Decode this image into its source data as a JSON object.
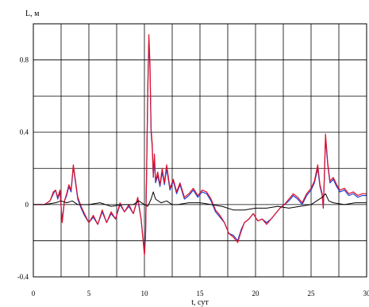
{
  "chart_data": {
    "type": "line",
    "ylabel": "L, м",
    "xlabel": "t, сут",
    "xlim": [
      0,
      30
    ],
    "ylim": [
      -0.4,
      1.0
    ],
    "x_ticks": [
      0,
      5,
      10,
      15,
      20,
      25,
      30
    ],
    "x_tick_labels": [
      "0",
      "5",
      "10",
      "15",
      "20",
      "25",
      "30"
    ],
    "y_ticks": [
      -0.4,
      0,
      0.4,
      0.8
    ],
    "y_tick_labels": [
      "-0.4",
      "0",
      "0.4",
      "0.8"
    ],
    "x_grid": [
      0,
      2.5,
      5,
      7.5,
      10,
      12.5,
      15,
      17.5,
      20,
      22.5,
      25,
      27.5,
      30
    ],
    "y_grid": [
      -0.4,
      -0.2,
      0,
      0.2,
      0.4,
      0.6,
      0.8,
      1.0
    ],
    "grid": true,
    "series": [
      {
        "color": "#1f3fd0",
        "x": [
          0,
          0.5,
          1.0,
          1.5,
          1.8,
          2.0,
          2.2,
          2.4,
          2.6,
          2.8,
          3.0,
          3.2,
          3.4,
          3.6,
          3.8,
          4.0,
          4.3,
          4.6,
          5.0,
          5.4,
          5.8,
          6.2,
          6.6,
          7.0,
          7.4,
          7.8,
          8.2,
          8.6,
          9.0,
          9.4,
          9.7,
          10.0,
          10.1,
          10.2,
          10.3,
          10.4,
          10.5,
          10.6,
          10.7,
          10.8,
          10.9,
          11.0,
          11.2,
          11.4,
          11.6,
          11.8,
          12.0,
          12.3,
          12.6,
          12.9,
          13.2,
          13.6,
          14.0,
          14.4,
          14.8,
          15.2,
          15.6,
          16.0,
          16.4,
          16.8,
          17.2,
          17.6,
          18.0,
          18.4,
          18.7,
          19.0,
          19.4,
          19.8,
          20.2,
          20.6,
          21.0,
          21.4,
          21.8,
          22.2,
          22.6,
          23.0,
          23.4,
          23.8,
          24.2,
          24.6,
          25.0,
          25.3,
          25.6,
          25.8,
          26.0,
          26.1,
          26.2,
          26.3,
          26.5,
          26.7,
          27.0,
          27.3,
          27.6,
          28.0,
          28.4,
          28.8,
          29.2,
          29.6,
          30.0
        ],
        "y": [
          0.0,
          0.0,
          0.0,
          0.02,
          0.06,
          0.08,
          0.03,
          0.07,
          -0.09,
          0.02,
          0.05,
          0.1,
          0.07,
          0.21,
          0.12,
          0.03,
          -0.02,
          -0.06,
          -0.1,
          -0.07,
          -0.11,
          -0.04,
          -0.1,
          -0.05,
          -0.08,
          0.0,
          -0.04,
          -0.01,
          -0.05,
          0.03,
          -0.08,
          -0.27,
          -0.17,
          0.18,
          0.62,
          0.91,
          0.75,
          0.4,
          0.32,
          0.15,
          0.26,
          0.12,
          0.16,
          0.1,
          0.18,
          0.11,
          0.2,
          0.08,
          0.13,
          0.06,
          0.11,
          0.03,
          0.05,
          0.08,
          0.04,
          0.07,
          0.06,
          0.02,
          -0.04,
          -0.07,
          -0.1,
          -0.16,
          -0.17,
          -0.2,
          -0.14,
          -0.1,
          -0.08,
          -0.05,
          -0.09,
          -0.08,
          -0.1,
          -0.08,
          -0.05,
          -0.02,
          0.0,
          0.02,
          0.05,
          0.03,
          0.0,
          0.05,
          0.08,
          0.12,
          0.2,
          0.1,
          0.05,
          -0.02,
          0.15,
          0.37,
          0.22,
          0.12,
          0.14,
          0.1,
          0.07,
          0.08,
          0.05,
          0.06,
          0.04,
          0.05,
          0.05
        ]
      },
      {
        "color": "#e0102a",
        "x": [
          0,
          0.5,
          1.0,
          1.5,
          1.8,
          2.0,
          2.2,
          2.4,
          2.6,
          2.8,
          3.0,
          3.2,
          3.4,
          3.6,
          3.8,
          4.0,
          4.3,
          4.6,
          5.0,
          5.4,
          5.8,
          6.2,
          6.6,
          7.0,
          7.4,
          7.8,
          8.2,
          8.6,
          9.0,
          9.4,
          9.7,
          10.0,
          10.1,
          10.2,
          10.3,
          10.4,
          10.5,
          10.6,
          10.7,
          10.8,
          10.9,
          11.0,
          11.2,
          11.4,
          11.6,
          11.8,
          12.0,
          12.3,
          12.6,
          12.9,
          13.2,
          13.6,
          14.0,
          14.4,
          14.8,
          15.2,
          15.6,
          16.0,
          16.4,
          16.8,
          17.2,
          17.6,
          18.0,
          18.4,
          18.7,
          19.0,
          19.4,
          19.8,
          20.2,
          20.6,
          21.0,
          21.4,
          21.8,
          22.2,
          22.6,
          23.0,
          23.4,
          23.8,
          24.2,
          24.6,
          25.0,
          25.3,
          25.6,
          25.8,
          26.0,
          26.1,
          26.2,
          26.3,
          26.5,
          26.7,
          27.0,
          27.3,
          27.6,
          28.0,
          28.4,
          28.8,
          29.2,
          29.6,
          30.0
        ],
        "y": [
          0.0,
          0.0,
          0.0,
          0.02,
          0.07,
          0.08,
          0.04,
          0.08,
          -0.1,
          0.02,
          0.06,
          0.11,
          0.08,
          0.22,
          0.13,
          0.04,
          -0.01,
          -0.05,
          -0.1,
          -0.06,
          -0.11,
          -0.03,
          -0.1,
          -0.04,
          -0.08,
          0.01,
          -0.04,
          0.0,
          -0.05,
          0.04,
          -0.08,
          -0.28,
          -0.18,
          0.2,
          0.65,
          0.94,
          0.78,
          0.42,
          0.34,
          0.16,
          0.28,
          0.13,
          0.18,
          0.11,
          0.2,
          0.12,
          0.22,
          0.09,
          0.14,
          0.07,
          0.12,
          0.04,
          0.06,
          0.09,
          0.05,
          0.08,
          0.07,
          0.03,
          -0.03,
          -0.06,
          -0.1,
          -0.16,
          -0.18,
          -0.21,
          -0.15,
          -0.1,
          -0.08,
          -0.05,
          -0.09,
          -0.08,
          -0.11,
          -0.08,
          -0.05,
          -0.02,
          0.0,
          0.03,
          0.06,
          0.04,
          0.01,
          0.06,
          0.09,
          0.13,
          0.22,
          0.11,
          0.06,
          -0.02,
          0.17,
          0.39,
          0.23,
          0.13,
          0.15,
          0.11,
          0.08,
          0.09,
          0.06,
          0.07,
          0.05,
          0.06,
          0.06
        ]
      },
      {
        "color": "#000000",
        "x": [
          0,
          1.0,
          2.0,
          2.5,
          3.0,
          3.5,
          4.0,
          5.0,
          6.0,
          7.0,
          8.0,
          9.0,
          9.5,
          10.0,
          10.3,
          10.6,
          10.8,
          11.0,
          11.5,
          12.0,
          12.5,
          13.0,
          14.0,
          15.0,
          16.0,
          17.0,
          18.0,
          19.0,
          20.0,
          21.0,
          22.0,
          23.0,
          24.0,
          25.0,
          25.5,
          26.0,
          26.3,
          26.6,
          27.0,
          28.0,
          29.0,
          30.0
        ],
        "y": [
          0.0,
          0.0,
          0.01,
          0.02,
          0.01,
          0.02,
          0.0,
          0.0,
          0.01,
          -0.01,
          0.0,
          0.0,
          0.02,
          0.0,
          -0.01,
          0.03,
          0.07,
          0.03,
          0.01,
          0.02,
          0.0,
          0.0,
          0.01,
          0.01,
          0.0,
          -0.01,
          -0.03,
          -0.03,
          -0.02,
          -0.02,
          -0.01,
          -0.02,
          -0.01,
          0.0,
          0.02,
          0.04,
          0.06,
          0.02,
          0.01,
          0.0,
          0.01,
          0.01
        ]
      }
    ]
  }
}
